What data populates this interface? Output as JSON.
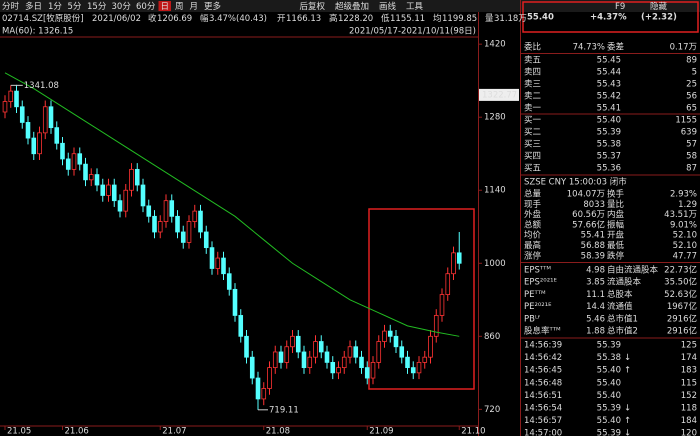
{
  "toolbar": {
    "items": [
      "分时",
      "多日",
      "1分",
      "5分",
      "15分",
      "30分",
      "60分",
      "日",
      "周",
      "月",
      "更多"
    ],
    "right_items": [
      "后复权",
      "超级叠加",
      "画线",
      "工具",
      "F9",
      "隐藏"
    ],
    "active": 7
  },
  "info": {
    "symbol": "02714.SZ[牧原股份]",
    "date": "2021/06/02",
    "fields": [
      {
        "label": "收",
        "value": "1206.69",
        "color": "#ff4444"
      },
      {
        "label": "幅",
        "value": "3.47%(40.43)",
        "color": "#ff4444"
      },
      {
        "label": "开",
        "value": "1166.13",
        "color": "#33dd33"
      },
      {
        "label": "高",
        "value": "1228.20",
        "color": "#ff4444"
      },
      {
        "label": "低",
        "value": "1155.11",
        "color": "#33dd33"
      },
      {
        "label": "均",
        "value": "1199.85",
        "color": "#dddddd"
      },
      {
        "label": "量",
        "value": "31.18万",
        "color": "#dddddd"
      }
    ],
    "ma_label": "MA(60): 1326.15",
    "range": "2021/05/17-2021/10/11(98日)"
  },
  "chart_data": {
    "type": "candlestick",
    "open": [
      1290,
      1310,
      1330,
      1300,
      1270,
      1240,
      1210,
      1250,
      1300,
      1260,
      1230,
      1200,
      1180,
      1210,
      1190,
      1160,
      1170,
      1150,
      1130,
      1150,
      1120,
      1100,
      1140,
      1180,
      1150,
      1110,
      1090,
      1060,
      1080,
      1120,
      1090,
      1060,
      1040,
      1080,
      1100,
      1060,
      1030,
      990,
      1010,
      980,
      950,
      900,
      860,
      820,
      780,
      740,
      760,
      800,
      830,
      810,
      840,
      860,
      830,
      800,
      820,
      850,
      830,
      810,
      790,
      800,
      820,
      840,
      820,
      800,
      780,
      810,
      850,
      870,
      860,
      840,
      820,
      800,
      790,
      810,
      820,
      860,
      900,
      940,
      980,
      1020
    ],
    "high": [
      1322,
      1341.08,
      1342,
      1312,
      1282,
      1252,
      1262,
      1312,
      1312,
      1272,
      1242,
      1212,
      1222,
      1222,
      1202,
      1182,
      1182,
      1162,
      1162,
      1162,
      1132,
      1152,
      1192,
      1192,
      1162,
      1122,
      1102,
      1092,
      1132,
      1132,
      1102,
      1072,
      1092,
      1112,
      1112,
      1072,
      1042,
      1022,
      1022,
      992,
      962,
      912,
      872,
      832,
      792,
      772,
      812,
      842,
      842,
      852,
      872,
      872,
      842,
      832,
      862,
      862,
      842,
      822,
      812,
      832,
      852,
      852,
      832,
      812,
      822,
      862,
      882,
      882,
      872,
      852,
      832,
      812,
      822,
      832,
      872,
      912,
      952,
      992,
      1032,
      1060
    ],
    "low": [
      1278,
      1298,
      1288,
      1258,
      1228,
      1198,
      1198,
      1238,
      1248,
      1218,
      1188,
      1168,
      1168,
      1178,
      1148,
      1148,
      1138,
      1118,
      1118,
      1108,
      1088,
      1088,
      1128,
      1138,
      1098,
      1078,
      1048,
      1048,
      1068,
      1078,
      1048,
      1028,
      1028,
      1068,
      1048,
      1018,
      978,
      978,
      968,
      938,
      888,
      848,
      808,
      768,
      719.11,
      728,
      748,
      788,
      798,
      798,
      828,
      818,
      788,
      788,
      808,
      818,
      798,
      778,
      778,
      788,
      808,
      808,
      788,
      768,
      768,
      798,
      838,
      848,
      828,
      808,
      788,
      778,
      778,
      798,
      808,
      848,
      888,
      928,
      968,
      988
    ],
    "close": [
      1310,
      1330,
      1300,
      1270,
      1240,
      1210,
      1250,
      1300,
      1260,
      1230,
      1200,
      1180,
      1210,
      1190,
      1160,
      1170,
      1150,
      1130,
      1150,
      1120,
      1100,
      1140,
      1180,
      1150,
      1110,
      1090,
      1060,
      1080,
      1120,
      1090,
      1060,
      1040,
      1080,
      1100,
      1060,
      1030,
      990,
      1010,
      980,
      950,
      900,
      860,
      820,
      780,
      740,
      760,
      800,
      830,
      810,
      840,
      860,
      830,
      800,
      820,
      850,
      830,
      810,
      790,
      800,
      820,
      840,
      820,
      800,
      780,
      810,
      850,
      870,
      860,
      840,
      820,
      800,
      790,
      810,
      820,
      860,
      900,
      940,
      980,
      1020,
      1000
    ],
    "ma60": {
      "index": [
        0,
        5,
        10,
        15,
        20,
        25,
        30,
        35,
        40,
        45,
        50,
        55,
        60,
        65,
        70,
        75,
        79
      ],
      "values": [
        1365,
        1335,
        1300,
        1265,
        1230,
        1195,
        1160,
        1125,
        1090,
        1045,
        1000,
        965,
        930,
        905,
        880,
        868,
        860
      ],
      "color": "#22bb22"
    },
    "up_color": "#ff3333",
    "down_color": "#54ffff",
    "ylim": [
      690,
      1428
    ],
    "yticks": [
      720,
      860,
      1000,
      1140,
      1280,
      1420
    ],
    "last_price": 1322.77,
    "x_labels": [
      {
        "index": 0,
        "label": "21.05"
      },
      {
        "index": 10,
        "label": "21.06"
      },
      {
        "index": 27,
        "label": "21.07"
      },
      {
        "index": 45,
        "label": "21.08"
      },
      {
        "index": 63,
        "label": "21.09"
      },
      {
        "index": 79,
        "label": "21.10"
      }
    ]
  },
  "quote": {
    "price": "55.40",
    "change": "+4.37%",
    "change_abs": "(+2.32)",
    "ratio": [
      "委比",
      "74.73%",
      "委差",
      "0.17万"
    ],
    "book": [
      [
        "卖五",
        "55.45",
        "89"
      ],
      [
        "卖四",
        "55.44",
        "5"
      ],
      [
        "卖三",
        "55.43",
        "25"
      ],
      [
        "卖二",
        "55.42",
        "56"
      ],
      [
        "卖一",
        "55.41",
        "65"
      ],
      [
        "买一",
        "55.40",
        "1155"
      ],
      [
        "买二",
        "55.39",
        "639"
      ],
      [
        "买三",
        "55.38",
        "57"
      ],
      [
        "买四",
        "55.37",
        "58"
      ],
      [
        "买五",
        "55.36",
        "87"
      ]
    ],
    "status": "SZSE  CNY  15:00:03  闭市",
    "stats": [
      {
        "cells": [
          "总量",
          "104.07万",
          "换手",
          "2.93%"
        ],
        "colors": [
          "#dddddd",
          "#dddddd"
        ]
      },
      {
        "cells": [
          "现手",
          "8033",
          "量比",
          "1.29"
        ],
        "colors": [
          "#dddddd",
          "#dddddd"
        ]
      },
      {
        "cells": [
          "外盘",
          "60.56万",
          "内盘",
          "43.51万"
        ],
        "colors": [
          "#ff4444",
          "#33dd33"
        ]
      },
      {
        "cells": [
          "总额",
          "57.66亿",
          "振幅",
          "9.01%"
        ],
        "colors": [
          "#dddddd",
          "#dddddd"
        ]
      },
      {
        "cells": [
          "均价",
          "55.41",
          "开盘",
          "52.10"
        ],
        "colors": [
          "#ff4444",
          "#33dd33"
        ]
      },
      {
        "cells": [
          "最高",
          "56.88",
          "最低",
          "52.10"
        ],
        "colors": [
          "#ff4444",
          "#33dd33"
        ]
      },
      {
        "cells": [
          "涨停",
          "58.39",
          "跌停",
          "47.77"
        ],
        "colors": [
          "#ff4444",
          "#33dd33"
        ]
      }
    ],
    "fin": [
      [
        "EPSᵀᵀᴹ",
        "4.98",
        "自由流通股本",
        "22.73亿"
      ],
      [
        "EPS²⁰²¹ᴱ",
        "3.85",
        "流通股本",
        "35.50亿"
      ],
      [
        "PEᵀᵀᴹ",
        "11.1",
        "总股本",
        "52.63亿"
      ],
      [
        "PE²⁰²¹ᴱ",
        "14.4",
        "流通值",
        "1967亿"
      ],
      [
        "PBᴸᶠ",
        "5.46",
        "总市值1",
        "2916亿"
      ],
      [
        "股息率ᵀᵀᴹ",
        "1.88",
        "总市值2",
        "2916亿"
      ]
    ],
    "trades": [
      {
        "time": "14:56:39",
        "price": "55.39",
        "arrow": "",
        "qty": "125",
        "color": "#33dd33"
      },
      {
        "time": "14:56:42",
        "price": "55.38",
        "arrow": "↓",
        "qty": "174",
        "color": "#33dd33"
      },
      {
        "time": "14:56:45",
        "price": "55.40",
        "arrow": "↑",
        "qty": "183",
        "color": "#ff4444"
      },
      {
        "time": "14:56:48",
        "price": "55.40",
        "arrow": "",
        "qty": "115",
        "color": "#33dd33"
      },
      {
        "time": "14:56:51",
        "price": "55.40",
        "arrow": "",
        "qty": "152",
        "color": "#ff4444"
      },
      {
        "time": "14:56:54",
        "price": "55.39",
        "arrow": "↓",
        "qty": "118",
        "color": "#33dd33"
      },
      {
        "time": "14:56:57",
        "price": "55.40",
        "arrow": "↑",
        "qty": "184",
        "color": "#33dd33"
      },
      {
        "time": "14:57:00",
        "price": "55.39",
        "arrow": "↓",
        "qty": "120",
        "color": "#33dd33"
      }
    ]
  }
}
